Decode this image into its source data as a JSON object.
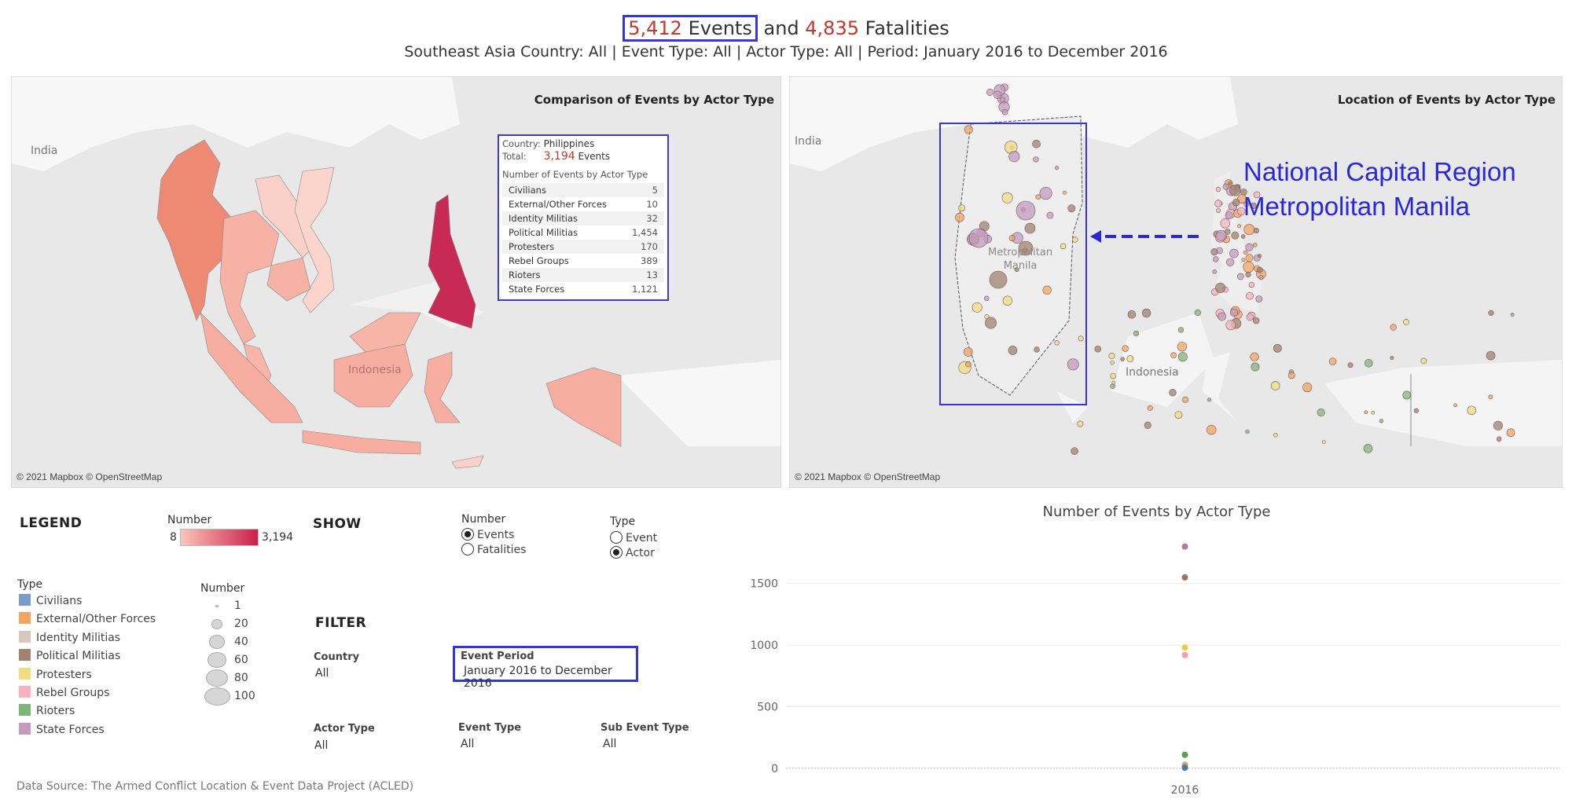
{
  "header": {
    "events_count": "5,412",
    "events_word": " Events",
    "and_word": "and",
    "fatalities_count": "4,835",
    "fatalities_word": " Fatalities",
    "subtitle": "Southeast Asia Country: All | Event Type: All | Actor Type: All | Period: January 2016 to December 2016"
  },
  "left_map": {
    "title": "Comparison of Events by Actor Type",
    "labels": {
      "india": "India",
      "indonesia": "Indonesia"
    },
    "credit": "© 2021 Mapbox © OpenStreetMap",
    "tooltip": {
      "country_label": "Country:",
      "country_value": "Philippines",
      "total_label": "Total:",
      "total_value": "3,194",
      "total_unit": "Events",
      "section_title": "Number of Events by Actor Type",
      "rows": [
        {
          "name": "Civilians",
          "value": "5"
        },
        {
          "name": "External/Other Forces",
          "value": "10"
        },
        {
          "name": "Identity Militias",
          "value": "32"
        },
        {
          "name": "Political Militias",
          "value": "1,454"
        },
        {
          "name": "Protesters",
          "value": "170"
        },
        {
          "name": "Rebel Groups",
          "value": "389"
        },
        {
          "name": "Rioters",
          "value": "13"
        },
        {
          "name": "State Forces",
          "value": "1,121"
        }
      ]
    }
  },
  "right_map": {
    "title": "Location of Events by Actor Type",
    "labels": {
      "india": "India",
      "indonesia": "Indonesia",
      "metro_manila": "Metropolitan\nManila"
    },
    "credit": "© 2021 Mapbox © OpenStreetMap",
    "annotation_line1": "National Capital Region",
    "annotation_line2": "Metropolitan Manila"
  },
  "legend": {
    "title": "LEGEND",
    "number_label": "Number",
    "gradient_min": "8",
    "gradient_max": "3,194",
    "gradient_colors": [
      "#fbc6ba",
      "#c9204a"
    ],
    "type_label": "Type",
    "types": [
      {
        "name": "Civilians",
        "color": "#7a9cc6"
      },
      {
        "name": "External/Other Forces",
        "color": "#f4a460"
      },
      {
        "name": "Identity Militias",
        "color": "#d4c8bf"
      },
      {
        "name": "Political Militias",
        "color": "#a0826d"
      },
      {
        "name": "Protesters",
        "color": "#f0dc82"
      },
      {
        "name": "Rebel Groups",
        "color": "#f7b2bf"
      },
      {
        "name": "Rioters",
        "color": "#7fb57a"
      },
      {
        "name": "State Forces",
        "color": "#c39bc0"
      }
    ],
    "size_label": "Number",
    "sizes": [
      "1",
      "20",
      "40",
      "60",
      "80",
      "100"
    ]
  },
  "show": {
    "title": "SHOW",
    "number_label": "Number",
    "number_options": [
      {
        "label": "Events",
        "selected": true
      },
      {
        "label": "Fatalities",
        "selected": false
      }
    ],
    "type_label": "Type",
    "type_options": [
      {
        "label": "Event",
        "selected": false
      },
      {
        "label": "Actor",
        "selected": true
      }
    ]
  },
  "filter": {
    "title": "FILTER",
    "country_label": "Country",
    "country_value": "All",
    "period_label": "Event Period",
    "period_value": "January 2016 to December 2016",
    "actor_type_label": "Actor Type",
    "actor_type_value": "All",
    "event_type_label": "Event Type",
    "event_type_value": "All",
    "sub_event_type_label": "Sub Event Type",
    "sub_event_type_value": "All"
  },
  "source": "Data Source: The Armed Conflict Location & Event Data Project (ACLED)",
  "chart_data": {
    "type": "scatter",
    "title": "Number of Events by Actor Type",
    "categories": [
      "2016"
    ],
    "ylim": [
      0,
      1900
    ],
    "yticks": [
      "0",
      "500",
      "1000",
      "1500"
    ],
    "grid": true,
    "series": [
      {
        "color": "#b07aa1",
        "values": [
          1800
        ]
      },
      {
        "color": "#9c755f",
        "values": [
          1550
        ]
      },
      {
        "color": "#edc948",
        "values": [
          980
        ]
      },
      {
        "color": "#ff9da7",
        "values": [
          920
        ]
      },
      {
        "color": "#59a14f",
        "values": [
          110
        ]
      },
      {
        "color": "#bab0ac",
        "values": [
          30
        ]
      },
      {
        "color": "#f28e2b",
        "values": [
          15
        ]
      },
      {
        "color": "#4e79a7",
        "values": [
          5
        ]
      }
    ]
  }
}
